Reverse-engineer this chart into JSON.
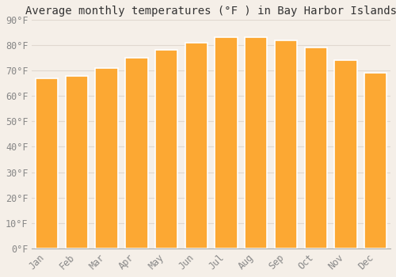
{
  "title": "Average monthly temperatures (°F ) in Bay Harbor Islands",
  "months": [
    "Jan",
    "Feb",
    "Mar",
    "Apr",
    "May",
    "Jun",
    "Jul",
    "Aug",
    "Sep",
    "Oct",
    "Nov",
    "Dec"
  ],
  "values": [
    67,
    68,
    71,
    75,
    78,
    81,
    83,
    83,
    82,
    79,
    74,
    69
  ],
  "bar_color": "#FCA833",
  "bar_edge_color": "#FFFFFF",
  "background_color": "#F5EFE8",
  "grid_color": "#E0D8D0",
  "ylim": [
    0,
    90
  ],
  "yticks": [
    0,
    10,
    20,
    30,
    40,
    50,
    60,
    70,
    80,
    90
  ],
  "title_fontsize": 10,
  "tick_fontsize": 8.5,
  "bar_width": 0.75
}
